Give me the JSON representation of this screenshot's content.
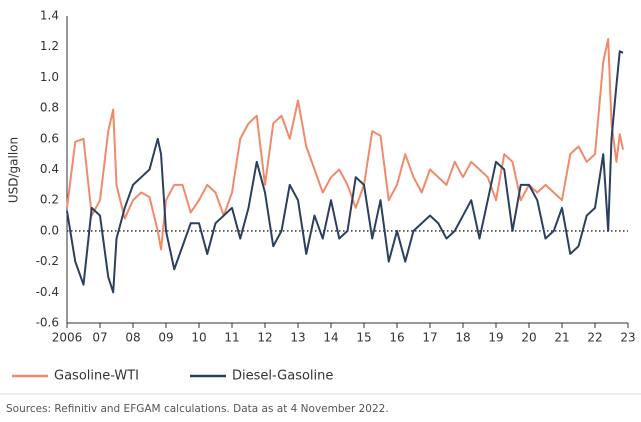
{
  "chart_data": {
    "type": "line",
    "y_label": "USD/gallon",
    "source": "Sources: Refinitiv and EFGAM calculations. Data as at 4 November 2022.",
    "x": [
      2006,
      2006.25,
      2006.5,
      2006.75,
      2007,
      2007.25,
      2007.4,
      2007.5,
      2007.75,
      2008,
      2008.25,
      2008.5,
      2008.75,
      2008.85,
      2009,
      2009.25,
      2009.5,
      2009.75,
      2010,
      2010.25,
      2010.5,
      2010.75,
      2011,
      2011.25,
      2011.5,
      2011.75,
      2012,
      2012.25,
      2012.5,
      2012.75,
      2013,
      2013.25,
      2013.5,
      2013.75,
      2014,
      2014.25,
      2014.5,
      2014.75,
      2015,
      2015.25,
      2015.5,
      2015.75,
      2016,
      2016.25,
      2016.5,
      2016.75,
      2017,
      2017.25,
      2017.5,
      2017.75,
      2018,
      2018.25,
      2018.5,
      2018.75,
      2019,
      2019.25,
      2019.5,
      2019.75,
      2020,
      2020.25,
      2020.5,
      2020.75,
      2021,
      2021.25,
      2021.5,
      2021.75,
      2022,
      2022.25,
      2022.4,
      2022.5,
      2022.65,
      2022.75,
      2022.85
    ],
    "series": [
      {
        "name": "Gasoline-WTI",
        "color": "#f08a6a",
        "values": [
          0.15,
          0.58,
          0.6,
          0.1,
          0.2,
          0.65,
          0.79,
          0.3,
          0.08,
          0.2,
          0.25,
          0.22,
          0.0,
          -0.12,
          0.2,
          0.3,
          0.3,
          0.12,
          0.2,
          0.3,
          0.25,
          0.1,
          0.25,
          0.6,
          0.7,
          0.75,
          0.3,
          0.7,
          0.75,
          0.6,
          0.85,
          0.55,
          0.4,
          0.25,
          0.35,
          0.4,
          0.3,
          0.15,
          0.3,
          0.65,
          0.62,
          0.2,
          0.3,
          0.5,
          0.35,
          0.25,
          0.4,
          0.35,
          0.3,
          0.45,
          0.35,
          0.45,
          0.4,
          0.35,
          0.2,
          0.5,
          0.45,
          0.2,
          0.3,
          0.25,
          0.3,
          0.25,
          0.2,
          0.5,
          0.55,
          0.45,
          0.5,
          1.1,
          1.25,
          0.7,
          0.45,
          0.63,
          0.53
        ]
      },
      {
        "name": "Diesel-Gasoline",
        "color": "#2b3f5e",
        "values": [
          0.13,
          -0.2,
          -0.35,
          0.15,
          0.1,
          -0.3,
          -0.4,
          -0.05,
          0.15,
          0.3,
          0.35,
          0.4,
          0.6,
          0.5,
          0.0,
          -0.25,
          -0.1,
          0.05,
          0.05,
          -0.15,
          0.05,
          0.1,
          0.15,
          -0.05,
          0.15,
          0.45,
          0.25,
          -0.1,
          0.0,
          0.3,
          0.2,
          -0.15,
          0.1,
          -0.05,
          0.2,
          -0.05,
          0.0,
          0.35,
          0.3,
          -0.05,
          0.2,
          -0.2,
          0.0,
          -0.2,
          0.0,
          0.05,
          0.1,
          0.05,
          -0.05,
          0.0,
          0.1,
          0.2,
          -0.05,
          0.2,
          0.45,
          0.4,
          0.0,
          0.3,
          0.3,
          0.2,
          -0.05,
          0.0,
          0.15,
          -0.15,
          -0.1,
          0.1,
          0.15,
          0.5,
          0.0,
          0.6,
          0.95,
          1.17,
          1.16
        ]
      }
    ],
    "xlim": [
      2006,
      2023
    ],
    "xticks": [
      2006,
      {
        "value": 2007,
        "label": "07"
      },
      {
        "value": 2008,
        "label": "08"
      },
      {
        "value": 2009,
        "label": "09"
      },
      {
        "value": 2010,
        "label": "10"
      },
      {
        "value": 2011,
        "label": "11"
      },
      {
        "value": 2012,
        "label": "12"
      },
      {
        "value": 2013,
        "label": "13"
      },
      {
        "value": 2014,
        "label": "14"
      },
      {
        "value": 2015,
        "label": "15"
      },
      {
        "value": 2016,
        "label": "16"
      },
      {
        "value": 2017,
        "label": "17"
      },
      {
        "value": 2018,
        "label": "18"
      },
      {
        "value": 2019,
        "label": "19"
      },
      {
        "value": 2020,
        "label": "20"
      },
      {
        "value": 2021,
        "label": "21"
      },
      {
        "value": 2022,
        "label": "22"
      },
      {
        "value": 2023,
        "label": "23"
      }
    ],
    "ylim": [
      -0.6,
      1.4
    ],
    "yticks": [
      -0.6,
      -0.4,
      -0.2,
      {
        "value": 0,
        "label": "0.0"
      },
      0.2,
      0.4,
      0.6,
      0.8,
      {
        "value": 1,
        "label": "1.0"
      },
      1.2,
      1.4
    ],
    "grid": false,
    "zero_line": true,
    "legend": "bottom"
  }
}
